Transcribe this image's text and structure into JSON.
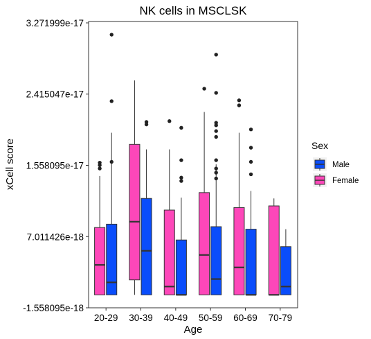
{
  "chart_data": {
    "type": "boxplot",
    "title": "NK cells in MSCLSK",
    "xlabel": "Age",
    "ylabel": "xCell score",
    "categories": [
      "20-29",
      "30-39",
      "40-49",
      "50-59",
      "60-69",
      "70-79"
    ],
    "y_ticks": [
      -1.558095e-18,
      7.011426e-18,
      1.558095e-17,
      2.415047e-17,
      3.271999e-17
    ],
    "y_tick_labels": [
      "-1.558095e-18",
      "7.011426e-18",
      "1.558095e-17",
      "2.415047e-17",
      "3.271999e-17"
    ],
    "ylim": [
      -1.558095e-18,
      3.271999e-17
    ],
    "grid": false,
    "legend_position": "right",
    "legend_title": "Sex",
    "series": [
      {
        "name": "Male",
        "color": "#0a4dfb",
        "boxes": [
          {
            "q1": 0,
            "median": 1.5e-18,
            "q3": 8.5e-18,
            "whisker_low": 0,
            "whisker_high": 1.95e-17,
            "outliers": [
              1.6e-17,
              2.33e-17,
              3.13e-17
            ]
          },
          {
            "q1": 0,
            "median": 5.3e-18,
            "q3": 1.16e-17,
            "whisker_low": 0,
            "whisker_high": 1.75e-17,
            "outliers": [
              2.05e-17,
              2.08e-17
            ]
          },
          {
            "q1": 0,
            "median": 0,
            "q3": 6.6e-18,
            "whisker_low": 0,
            "whisker_high": 1.17e-17,
            "outliers": [
              1.37e-17,
              1.41e-17,
              1.62e-17,
              2.01e-17
            ]
          },
          {
            "q1": 0,
            "median": 1.9e-18,
            "q3": 8.2e-18,
            "whisker_low": 0,
            "whisker_high": 1.57e-17,
            "outliers": [
              1.4e-17,
              1.47e-17,
              1.52e-17,
              1.62e-17,
              1.9e-17,
              1.97e-17,
              2.04e-17,
              2.07e-17,
              2.43e-17,
              2.89e-17
            ]
          },
          {
            "q1": 0,
            "median": 0,
            "q3": 7.9e-18,
            "whisker_low": 0,
            "whisker_high": 1.25e-17,
            "outliers": [
              1.45e-17,
              1.6e-17,
              1.77e-17,
              1.99e-17
            ]
          },
          {
            "q1": 0,
            "median": 1e-18,
            "q3": 5.8e-18,
            "whisker_low": 0,
            "whisker_high": 7.9e-18,
            "outliers": []
          }
        ]
      },
      {
        "name": "Female",
        "color": "#fd47b9",
        "boxes": [
          {
            "q1": 0,
            "median": 3.6e-18,
            "q3": 8.1e-18,
            "whisker_low": 0,
            "whisker_high": 1.43e-17,
            "outliers": [
              1.52e-17,
              1.56e-17,
              1.59e-17
            ]
          },
          {
            "q1": 1.8e-18,
            "median": 8.8e-18,
            "q3": 1.81e-17,
            "whisker_low": 0,
            "whisker_high": 2.58e-17,
            "outliers": []
          },
          {
            "q1": 0,
            "median": 1e-18,
            "q3": 1.02e-17,
            "whisker_low": 0,
            "whisker_high": 1.75e-17,
            "outliers": [
              2.09e-17
            ]
          },
          {
            "q1": 0,
            "median": 4.8e-18,
            "q3": 1.23e-17,
            "whisker_low": 0,
            "whisker_high": 2.2e-17,
            "outliers": [
              2.48e-17
            ]
          },
          {
            "q1": 0,
            "median": 3.3e-18,
            "q3": 1.05e-17,
            "whisker_low": 0,
            "whisker_high": 1.95e-17,
            "outliers": [
              2.28e-17,
              2.34e-17
            ]
          },
          {
            "q1": 0,
            "median": 0,
            "q3": 1.07e-17,
            "whisker_low": 0,
            "whisker_high": 1.16e-17,
            "outliers": []
          }
        ]
      }
    ],
    "legend_order": [
      "Male",
      "Female"
    ],
    "dodge_order": [
      "Female",
      "Male"
    ]
  }
}
